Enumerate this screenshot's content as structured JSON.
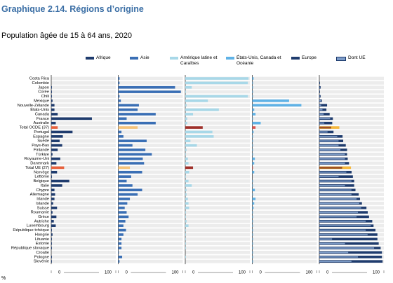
{
  "chart_data": {
    "type": "bar",
    "orientation": "horizontal",
    "title": "Graphique 2.14. Régions d’origine",
    "subtitle": "Population âgée de 15 à 64 ans, 2020",
    "unit_label": "%",
    "categories": [
      "Costa Rica",
      "Colombie",
      "Japon",
      "Corée",
      "Chili",
      "Mexique",
      "Nouvelle-Zélande",
      "États-Unis",
      "Canada",
      "France",
      "Australie",
      "Total OCDE (37)",
      "Portugal",
      "Espagne",
      "Suède",
      "Pays-Bas",
      "Finlande",
      "Türkiye",
      "Royaume-Uni",
      "Danemark",
      "Total UE (27)",
      "Norvège",
      "Lettonie",
      "Belgique",
      "Italie",
      "Chypre",
      "Allemagne",
      "Irlande",
      "Islande",
      "Suisse",
      "Roumanie",
      "Grèce",
      "Autriche",
      "Luxembourg",
      "République tchèque",
      "Hongrie",
      "Lituanie",
      "Estonie",
      "République slovaque",
      "Croatie",
      "Pologne",
      "Slovénie"
    ],
    "highlight_indices": [
      11,
      20
    ],
    "xlim": [
      0,
      100
    ],
    "xticks": [
      0,
      100
    ],
    "series": [
      {
        "name": "Afrique",
        "color": "#1f3c6e",
        "highlight_color": "#e8613c",
        "values": [
          0,
          0,
          1,
          1,
          1,
          2,
          5,
          5,
          10,
          63,
          7,
          10,
          33,
          18,
          13,
          17,
          10,
          2,
          14,
          8,
          20,
          9,
          1,
          28,
          17,
          5,
          6,
          5,
          3,
          9,
          2,
          8,
          4,
          7,
          1,
          2,
          1,
          1,
          1,
          0,
          1,
          1
        ]
      },
      {
        "name": "Asie",
        "color": "#3a6fb5",
        "highlight_color": "#f6c37a",
        "values": [
          2,
          2,
          88,
          97,
          2,
          4,
          32,
          30,
          58,
          13,
          58,
          30,
          5,
          8,
          44,
          22,
          42,
          52,
          38,
          40,
          18,
          37,
          20,
          13,
          22,
          37,
          30,
          18,
          14,
          10,
          13,
          16,
          11,
          8,
          12,
          8,
          5,
          5,
          5,
          1,
          6,
          2
        ]
      },
      {
        "name": "Amérique latine et Caraïbes",
        "color": "#a8d8e8",
        "highlight_color": "#a0302a",
        "values": [
          98,
          97,
          10,
          1,
          97,
          35,
          2,
          52,
          12,
          3,
          3,
          27,
          42,
          44,
          8,
          18,
          2,
          1,
          4,
          5,
          12,
          6,
          1,
          5,
          10,
          2,
          2,
          4,
          5,
          6,
          1,
          1,
          2,
          5,
          1,
          1,
          1,
          1,
          1,
          0,
          1,
          0
        ]
      },
      {
        "name": "États-Unis, Canada et Océanie",
        "color": "#5fb2e6",
        "highlight_color": "#d9534f",
        "values": [
          2,
          1,
          1,
          1,
          1,
          57,
          76,
          3,
          5,
          1,
          13,
          5,
          2,
          1,
          1,
          1,
          1,
          1,
          4,
          3,
          1,
          3,
          0,
          1,
          1,
          4,
          1,
          5,
          3,
          2,
          1,
          1,
          1,
          1,
          1,
          1,
          1,
          1,
          1,
          1,
          1,
          1
        ]
      },
      {
        "name": "Europe",
        "color": "#1f3c6e",
        "highlight_color": "#f6b83c",
        "values": [
          0,
          1,
          2,
          1,
          2,
          4,
          12,
          11,
          16,
          21,
          20,
          31,
          22,
          36,
          37,
          41,
          43,
          43,
          44,
          46,
          49,
          50,
          52,
          54,
          54,
          56,
          61,
          63,
          66,
          73,
          75,
          77,
          82,
          84,
          87,
          90,
          90,
          92,
          95,
          97,
          97,
          98
        ]
      },
      {
        "name": "Dont UE",
        "color": "#7d9cc8",
        "highlight_color": "#a8552a",
        "overlay": true,
        "values": [
          0,
          0,
          1,
          0,
          1,
          3,
          3,
          5,
          7,
          17,
          8,
          18,
          13,
          28,
          30,
          30,
          33,
          40,
          40,
          40,
          35,
          42,
          30,
          50,
          40,
          50,
          50,
          58,
          62,
          65,
          60,
          58,
          72,
          80,
          72,
          75,
          20,
          40,
          85,
          45,
          60,
          50
        ]
      }
    ]
  }
}
